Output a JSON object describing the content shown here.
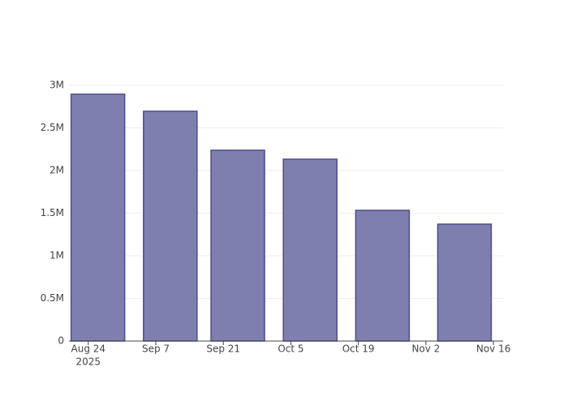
{
  "chart_data": {
    "type": "bar",
    "x": [
      "2025-08-26",
      "2025-09-10",
      "2025-09-24",
      "2025-10-09",
      "2025-10-24",
      "2025-11-10"
    ],
    "values": [
      2895000,
      2695000,
      2238000,
      2133000,
      1533000,
      1371000
    ],
    "color": "#7f7faf",
    "edge_color": "#4c4c8c",
    "xlim": [
      "2025-08-20",
      "2025-11-18"
    ],
    "xticks": [
      {
        "value": "2025-08-24",
        "label": "Aug 24"
      },
      {
        "value": "2025-09-07",
        "label": "Sep 7"
      },
      {
        "value": "2025-09-21",
        "label": "Sep 21"
      },
      {
        "value": "2025-10-05",
        "label": "Oct 5"
      },
      {
        "value": "2025-10-19",
        "label": "Oct 19"
      },
      {
        "value": "2025-11-02",
        "label": "Nov 2"
      },
      {
        "value": "2025-11-16",
        "label": "Nov 16"
      }
    ],
    "x_year_label": "2025",
    "ylim": [
      0,
      3000000
    ],
    "yticks": [
      0,
      {
        "value": 500000,
        "label": "0.5M"
      },
      {
        "value": 1000000,
        "label": "1M"
      },
      {
        "value": 1500000,
        "label": "1.5M"
      },
      {
        "value": 2000000,
        "label": "2M"
      },
      {
        "value": 2500000,
        "label": "2.5M"
      },
      {
        "value": 3000000,
        "label": "3M"
      }
    ],
    "grid": true
  }
}
